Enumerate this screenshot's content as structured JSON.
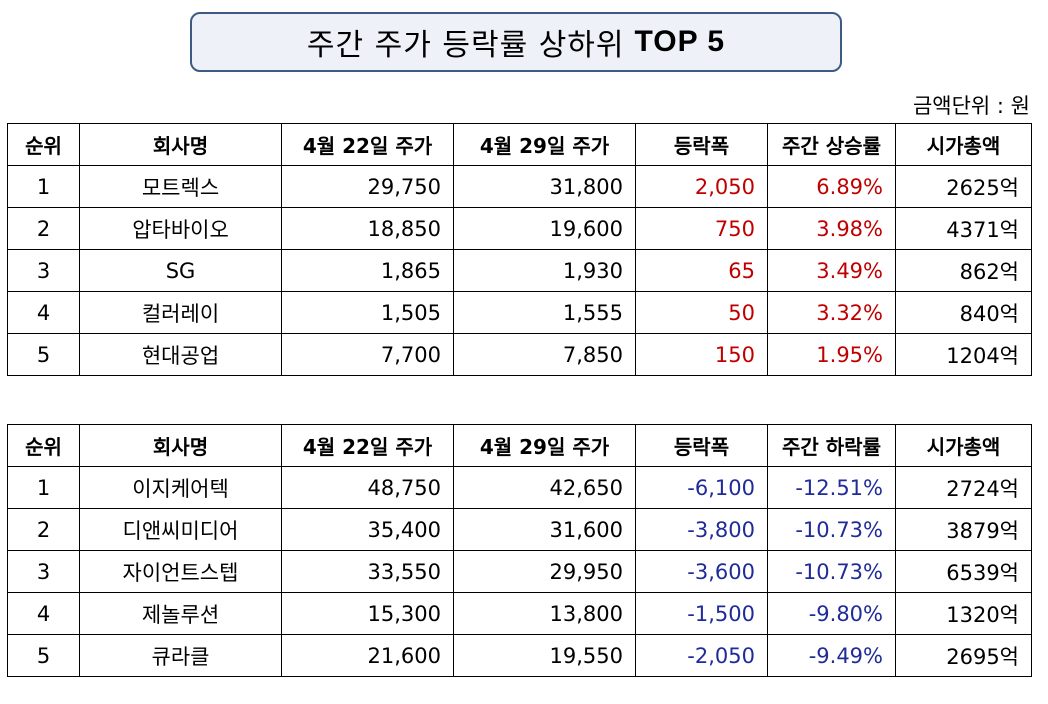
{
  "title": {
    "korean": "주간 주가 등락률 상하위",
    "english": "TOP 5"
  },
  "unit_label": "금액단위 : 원",
  "colors": {
    "up": "#c00000",
    "down": "#1f2b99",
    "title_border": "#3d5a80"
  },
  "gainers": {
    "headers": [
      "순위",
      "회사명",
      "4월 22일 주가",
      "4월 29일 주가",
      "등락폭",
      "주간 상승률",
      "시가총액"
    ],
    "rows": [
      [
        "1",
        "모트렉스",
        "29,750",
        "31,800",
        "2,050",
        "6.89%",
        "2625억"
      ],
      [
        "2",
        "압타바이오",
        "18,850",
        "19,600",
        "750",
        "3.98%",
        "4371억"
      ],
      [
        "3",
        "SG",
        "1,865",
        "1,930",
        "65",
        "3.49%",
        "862억"
      ],
      [
        "4",
        "컬러레이",
        "1,505",
        "1,555",
        "50",
        "3.32%",
        "840억"
      ],
      [
        "5",
        "현대공업",
        "7,700",
        "7,850",
        "150",
        "1.95%",
        "1204억"
      ]
    ]
  },
  "losers": {
    "headers": [
      "순위",
      "회사명",
      "4월 22일 주가",
      "4월 29일 주가",
      "등락폭",
      "주간 하락률",
      "시가총액"
    ],
    "rows": [
      [
        "1",
        "이지케어텍",
        "48,750",
        "42,650",
        "-6,100",
        "-12.51%",
        "2724억"
      ],
      [
        "2",
        "디앤씨미디어",
        "35,400",
        "31,600",
        "-3,800",
        "-10.73%",
        "3879억"
      ],
      [
        "3",
        "자이언트스텝",
        "33,550",
        "29,950",
        "-3,600",
        "-10.73%",
        "6539억"
      ],
      [
        "4",
        "제놀루션",
        "15,300",
        "13,800",
        "-1,500",
        "-9.80%",
        "1320억"
      ],
      [
        "5",
        "큐라클",
        "21,600",
        "19,550",
        "-2,050",
        "-9.49%",
        "2695억"
      ]
    ]
  }
}
